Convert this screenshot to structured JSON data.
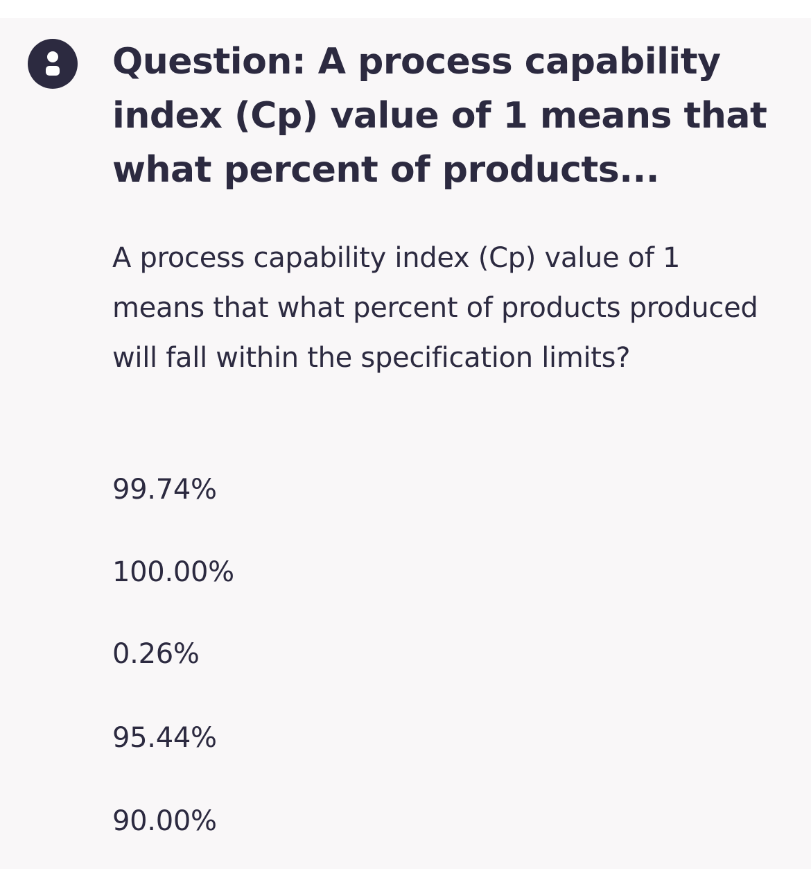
{
  "question": {
    "title": "Question: A process capability index (Cp) value of 1 means that what percent of products...",
    "body": "A process capability index (Cp) value of 1 means that what percent of products produced will fall within the specification limits?",
    "options": [
      {
        "label": "99.74%"
      },
      {
        "label": "100.00%"
      },
      {
        "label": "0.26%"
      },
      {
        "label": "95.44%"
      },
      {
        "label": "90.00%"
      }
    ]
  },
  "icons": {
    "avatar": "user-avatar-icon"
  },
  "colors": {
    "text": "#2c2a40",
    "background": "#f9f7f8",
    "avatar_bg": "#2c2a40"
  }
}
